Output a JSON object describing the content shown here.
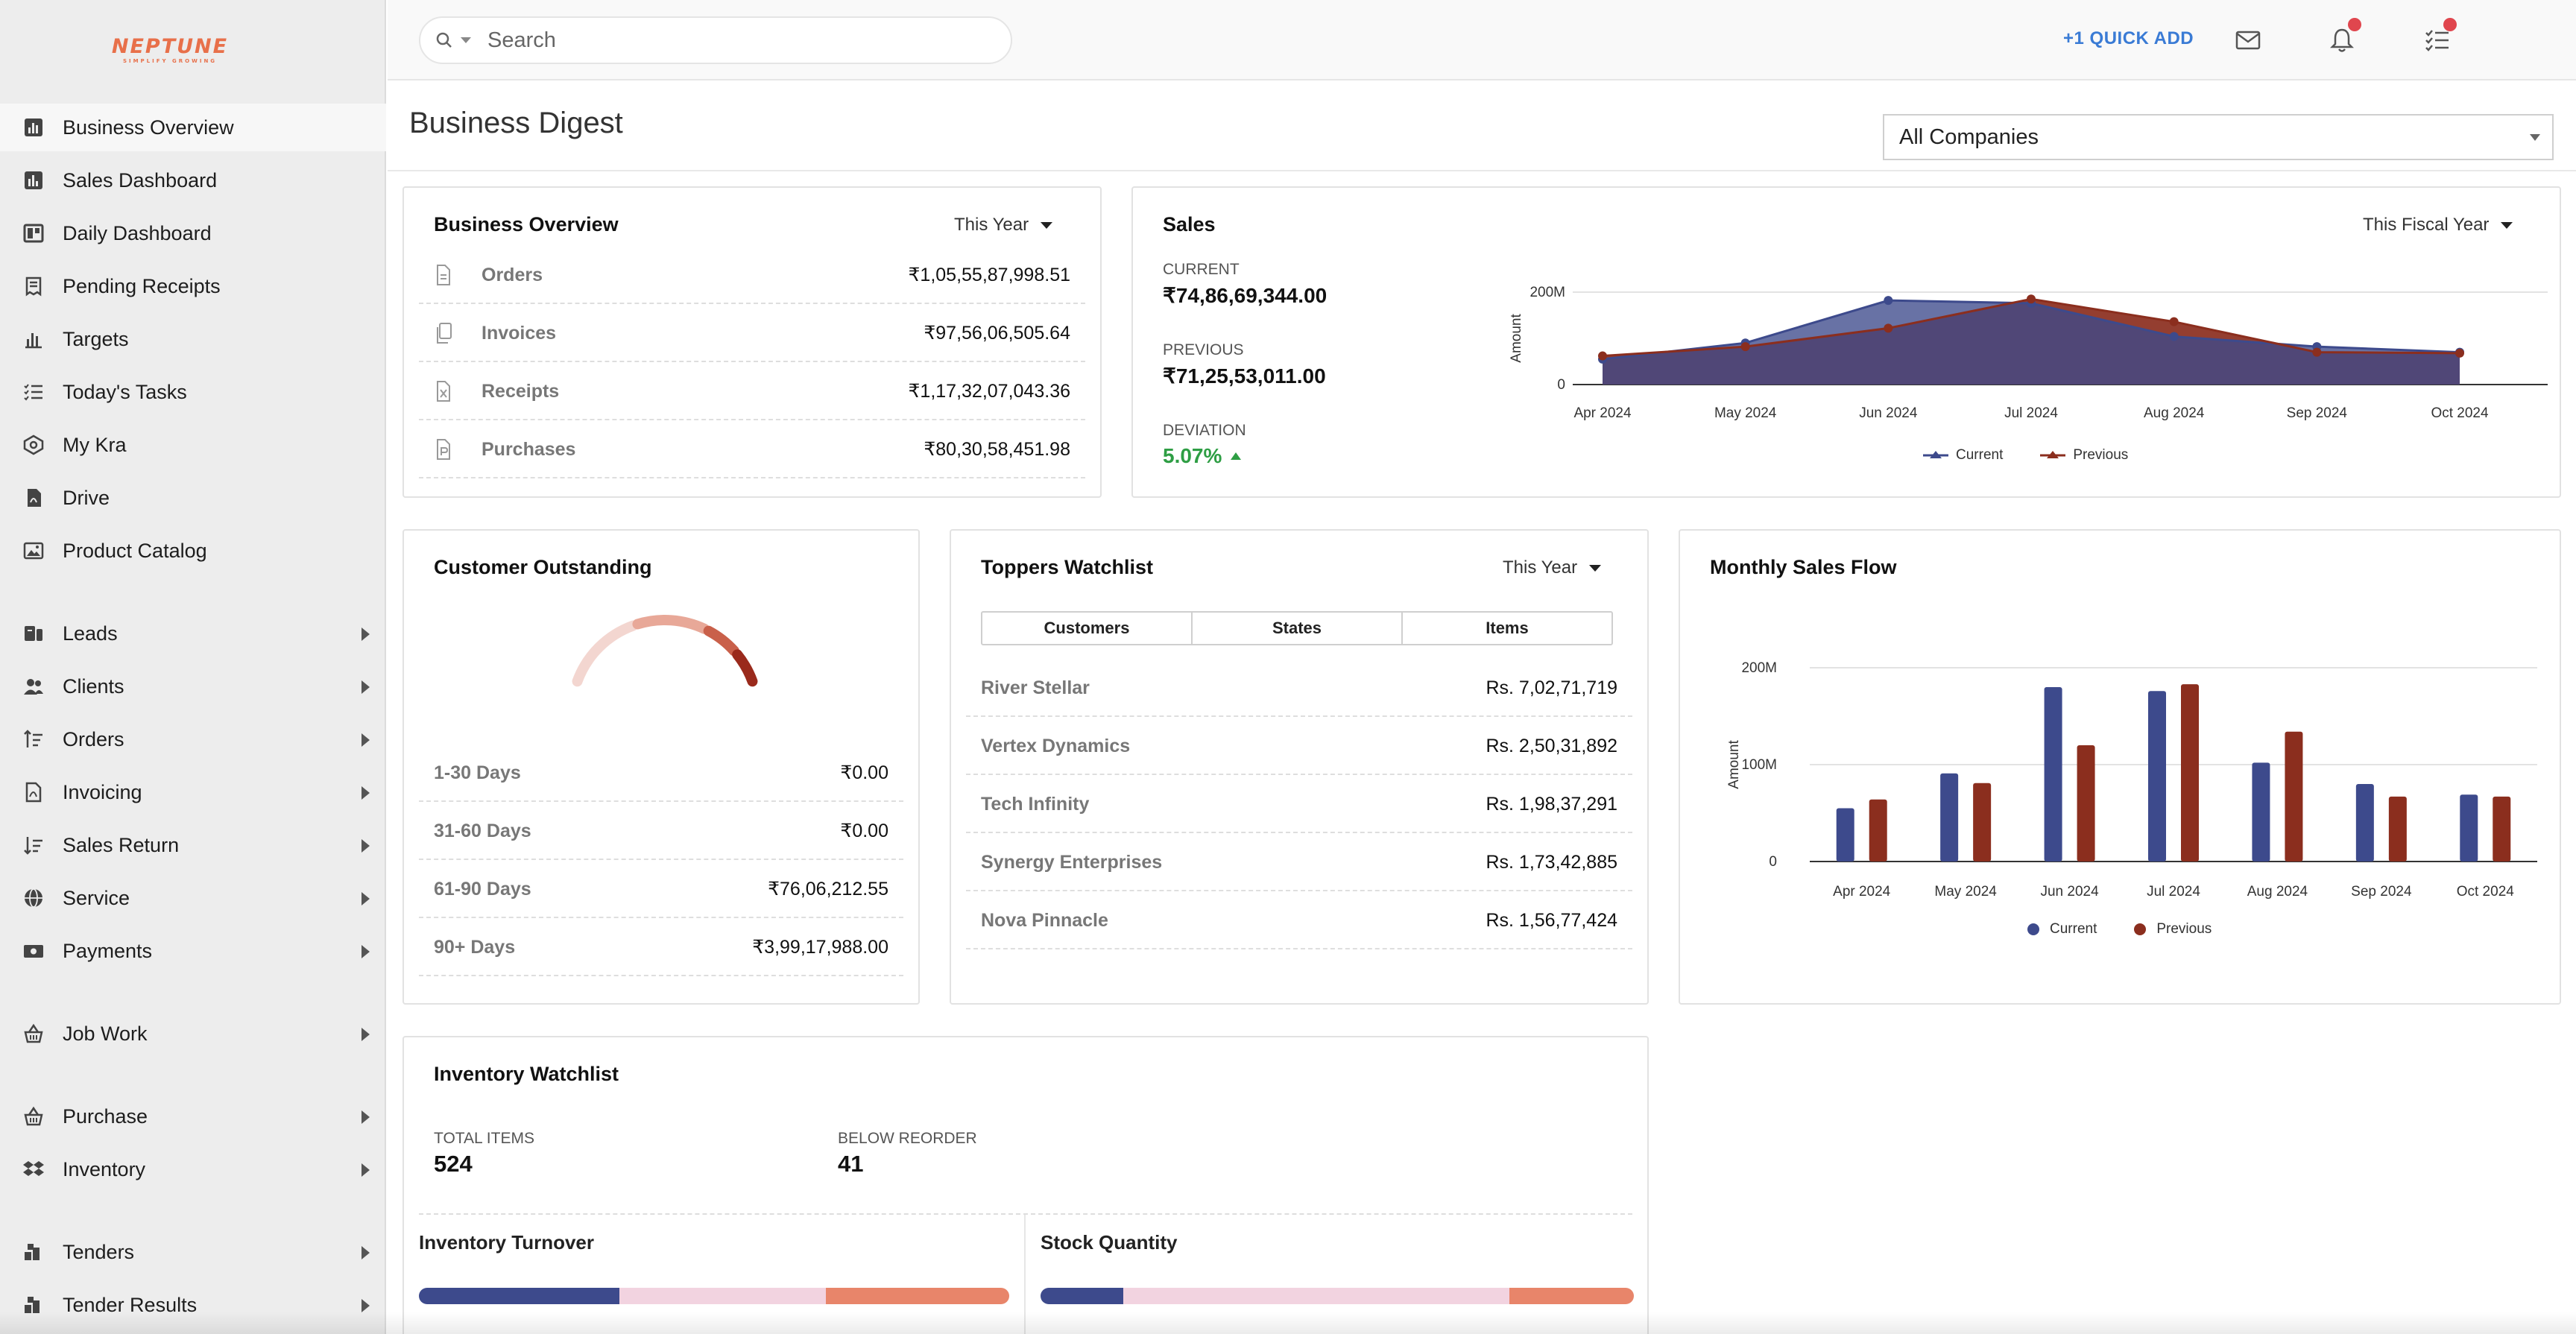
{
  "logo": {
    "text": "NEPTUNE",
    "subtitle": "SIMPLIFY GROWING"
  },
  "search": {
    "placeholder": "Search"
  },
  "topbar": {
    "quick_add": "+1 QUICK ADD"
  },
  "page": {
    "title": "Business Digest",
    "company_filter": "All Companies"
  },
  "sidebar": {
    "items": [
      {
        "label": "Business Overview",
        "icon": "bar-chart-icon",
        "active": true,
        "arrow": false
      },
      {
        "label": "Sales Dashboard",
        "icon": "chart-box-icon",
        "arrow": false
      },
      {
        "label": "Daily Dashboard",
        "icon": "board-icon",
        "arrow": false
      },
      {
        "label": "Pending Receipts",
        "icon": "receipt-icon",
        "arrow": false
      },
      {
        "label": "Targets",
        "icon": "targets-chart-icon",
        "arrow": false
      },
      {
        "label": "Today's Tasks",
        "icon": "task-list-icon",
        "arrow": false
      },
      {
        "label": "My Kra",
        "icon": "kra-icon",
        "arrow": false
      },
      {
        "label": "Drive",
        "icon": "drive-file-icon",
        "arrow": false
      },
      {
        "label": "Product Catalog",
        "icon": "image-icon",
        "arrow": false
      },
      {
        "label": "Leads",
        "icon": "leads-icon",
        "arrow": true
      },
      {
        "label": "Clients",
        "icon": "clients-icon",
        "arrow": true
      },
      {
        "label": "Orders",
        "icon": "orders-icon",
        "arrow": true
      },
      {
        "label": "Invoicing",
        "icon": "invoice-icon",
        "arrow": true
      },
      {
        "label": "Sales Return",
        "icon": "sales-return-icon",
        "arrow": true
      },
      {
        "label": "Service",
        "icon": "globe-icon",
        "arrow": true
      },
      {
        "label": "Payments",
        "icon": "payments-icon",
        "arrow": true
      },
      {
        "label": "Job Work",
        "icon": "basket-icon",
        "arrow": true
      },
      {
        "label": "Purchase",
        "icon": "purchase-basket-icon",
        "arrow": true
      },
      {
        "label": "Inventory",
        "icon": "dropbox-icon",
        "arrow": true
      },
      {
        "label": "Tenders",
        "icon": "tenders-icon",
        "arrow": true
      },
      {
        "label": "Tender Results",
        "icon": "tender-results-icon",
        "arrow": true
      }
    ]
  },
  "business_overview": {
    "title": "Business Overview",
    "period": "This Year",
    "rows": [
      {
        "label": "Orders",
        "value": "₹1,05,55,87,998.51",
        "icon": "document-icon"
      },
      {
        "label": "Invoices",
        "value": "₹97,56,06,505.64",
        "icon": "copy-icon"
      },
      {
        "label": "Receipts",
        "value": "₹1,17,32,07,043.36",
        "icon": "excel-file-icon"
      },
      {
        "label": "Purchases",
        "value": "₹80,30,58,451.98",
        "icon": "purchase-file-icon"
      }
    ]
  },
  "sales": {
    "title": "Sales",
    "period": "This Fiscal Year",
    "current_label": "CURRENT",
    "current_value": "₹74,86,69,344.00",
    "previous_label": "PREVIOUS",
    "previous_value": "₹71,25,53,011.00",
    "deviation_label": "DEVIATION",
    "deviation_value": "5.07%",
    "colors": {
      "current": "#3d4a8c",
      "previous": "#8b2e1e"
    }
  },
  "customer_outstanding": {
    "title": "Customer Outstanding",
    "rows": [
      {
        "label": "1-30 Days",
        "value": "₹0.00"
      },
      {
        "label": "31-60 Days",
        "value": "₹0.00"
      },
      {
        "label": "61-90 Days",
        "value": "₹76,06,212.55"
      },
      {
        "label": "90+ Days",
        "value": "₹3,99,17,988.00"
      }
    ],
    "gauge_colors": [
      "#f3d6d0",
      "#e8a898",
      "#c9604a",
      "#9a2a1c"
    ]
  },
  "toppers": {
    "title": "Toppers Watchlist",
    "period": "This Year",
    "tabs": [
      "Customers",
      "States",
      "Items"
    ],
    "rows": [
      {
        "label": "River Stellar",
        "value": "Rs. 7,02,71,719"
      },
      {
        "label": "Vertex Dynamics",
        "value": "Rs. 2,50,31,892"
      },
      {
        "label": "Tech Infinity",
        "value": "Rs. 1,98,37,291"
      },
      {
        "label": "Synergy Enterprises",
        "value": "Rs. 1,73,42,885"
      },
      {
        "label": "Nova Pinnacle",
        "value": "Rs. 1,56,77,424"
      }
    ]
  },
  "monthly_sales": {
    "title": "Monthly Sales Flow"
  },
  "inventory": {
    "title": "Inventory Watchlist",
    "total_label": "TOTAL ITEMS",
    "total_value": "524",
    "reorder_label": "BELOW REORDER",
    "reorder_value": "41",
    "turnover_title": "Inventory Turnover",
    "turnover_parts": [
      0.34,
      0.35,
      0.31
    ],
    "stock_title": "Stock Quantity",
    "stock_parts": [
      0.14,
      0.65,
      0.21
    ],
    "bar_colors": [
      "#3d4a8c",
      "#f2d3e0",
      "#e8856a"
    ]
  },
  "chart_data": [
    {
      "type": "area",
      "title": "",
      "xlabel": "",
      "ylabel": "Amount",
      "categories": [
        "Apr 2024",
        "May 2024",
        "Jun 2024",
        "Jul 2024",
        "Aug 2024",
        "Sep 2024",
        "Oct 2024"
      ],
      "y_ticks": [
        "0",
        "200M"
      ],
      "ylim": [
        0,
        200000000
      ],
      "series": [
        {
          "name": "Current",
          "values": [
            55000000,
            90000000,
            182000000,
            176000000,
            104000000,
            82000000,
            70000000
          ]
        },
        {
          "name": "Previous",
          "values": [
            62000000,
            82000000,
            122000000,
            185000000,
            136000000,
            70000000,
            68000000
          ]
        }
      ],
      "legend": "bottom",
      "grid": true
    },
    {
      "type": "bar",
      "title": "",
      "xlabel": "",
      "ylabel": "Amount",
      "categories": [
        "Apr 2024",
        "May 2024",
        "Jun 2024",
        "Jul 2024",
        "Aug 2024",
        "Sep 2024",
        "Oct 2024"
      ],
      "y_ticks": [
        "0",
        "100M",
        "200M"
      ],
      "ylim": [
        0,
        200000000
      ],
      "series": [
        {
          "name": "Current",
          "values": [
            55000000,
            91000000,
            180000000,
            176000000,
            102000000,
            80000000,
            69000000
          ]
        },
        {
          "name": "Previous",
          "values": [
            64000000,
            81000000,
            120000000,
            183000000,
            134000000,
            67000000,
            67000000
          ]
        }
      ],
      "legend": "bottom",
      "grid": true
    }
  ]
}
